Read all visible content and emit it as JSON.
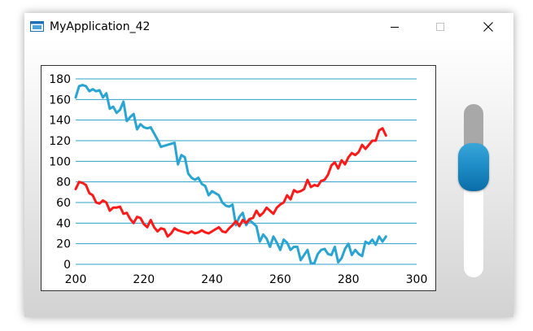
{
  "window": {
    "title": "MyApplication_42"
  },
  "icons": {
    "app": "app-window-icon",
    "minimize": "minimize-icon",
    "maximize": "maximize-icon",
    "close": "close-icon"
  },
  "colors": {
    "grid": "#2ba1cc",
    "series_blue": "#2aa4d2",
    "series_red": "#ff1a1a",
    "slider_thumb": "#1f8ec8"
  },
  "slider": {
    "value": 0.64
  },
  "chart_data": {
    "type": "line",
    "xlim": [
      200,
      300
    ],
    "ylim": [
      0,
      180
    ],
    "x_ticks": [
      200,
      220,
      240,
      260,
      280,
      300
    ],
    "y_ticks": [
      0,
      20,
      40,
      60,
      80,
      100,
      120,
      140,
      160,
      180
    ],
    "grid": "horizontal",
    "legend": "none",
    "series": [
      {
        "color": "#2aa4d2",
        "x": [
          200,
          201,
          202,
          203,
          204,
          205,
          206,
          207,
          208,
          209,
          210,
          211,
          212,
          213,
          214,
          215,
          216,
          217,
          218,
          219,
          220,
          221,
          222,
          223,
          224,
          225,
          226,
          227,
          228,
          229,
          230,
          231,
          232,
          233,
          234,
          235,
          236,
          237,
          238,
          239,
          240,
          241,
          242,
          243,
          244,
          245,
          246,
          247,
          248,
          249,
          250,
          251,
          252,
          253,
          254,
          255,
          256,
          257,
          258,
          259,
          260,
          261,
          262,
          263,
          264,
          265,
          266,
          267,
          268,
          269,
          270,
          271,
          272,
          273,
          274,
          275,
          276,
          277,
          278,
          279,
          280,
          281,
          282,
          283,
          284,
          285,
          286,
          287,
          288,
          289,
          290,
          291
        ],
        "y": [
          162,
          173,
          174,
          173,
          168,
          170,
          168,
          169,
          162,
          166,
          151,
          153,
          147,
          150,
          158,
          139,
          143,
          146,
          131,
          136,
          133,
          132,
          133,
          127,
          121,
          114,
          115,
          116,
          117,
          118,
          97,
          106,
          104,
          88,
          84,
          82,
          84,
          78,
          76,
          67,
          71,
          69,
          67,
          60,
          57,
          56,
          58,
          38,
          46,
          50,
          38,
          43,
          40,
          37,
          22,
          29,
          25,
          17,
          27,
          21,
          14,
          24,
          21,
          14,
          17,
          17,
          4,
          9,
          14,
          1,
          1,
          10,
          14,
          15,
          10,
          9,
          17,
          2,
          6,
          15,
          20,
          9,
          14,
          10,
          8,
          22,
          20,
          24,
          19,
          27,
          22,
          27
        ]
      },
      {
        "color": "#ff1a1a",
        "x": [
          200,
          201,
          202,
          203,
          204,
          205,
          206,
          207,
          208,
          209,
          210,
          211,
          212,
          213,
          214,
          215,
          216,
          217,
          218,
          219,
          220,
          221,
          222,
          223,
          224,
          225,
          226,
          227,
          228,
          229,
          230,
          231,
          232,
          233,
          234,
          235,
          236,
          237,
          238,
          239,
          240,
          241,
          242,
          243,
          244,
          245,
          246,
          247,
          248,
          249,
          250,
          251,
          252,
          253,
          254,
          255,
          256,
          257,
          258,
          259,
          260,
          261,
          262,
          263,
          264,
          265,
          266,
          267,
          268,
          269,
          270,
          271,
          272,
          273,
          274,
          275,
          276,
          277,
          278,
          279,
          280,
          281,
          282,
          283,
          284,
          285,
          286,
          287,
          288,
          289,
          290,
          291
        ],
        "y": [
          73,
          80,
          79,
          77,
          69,
          67,
          60,
          59,
          62,
          60,
          52,
          55,
          55,
          56,
          49,
          50,
          44,
          40,
          46,
          45,
          39,
          36,
          43,
          36,
          32,
          35,
          34,
          27,
          30,
          35,
          33,
          32,
          31,
          30,
          32,
          30,
          31,
          33,
          31,
          30,
          32,
          34,
          36,
          32,
          31,
          35,
          38,
          42,
          37,
          43,
          40,
          44,
          45,
          52,
          47,
          50,
          55,
          52,
          49,
          55,
          58,
          60,
          67,
          63,
          72,
          70,
          71,
          73,
          82,
          75,
          77,
          76,
          81,
          82,
          87,
          96,
          99,
          93,
          101,
          97,
          104,
          108,
          106,
          109,
          116,
          112,
          116,
          120,
          120,
          130,
          132,
          125
        ]
      }
    ]
  }
}
